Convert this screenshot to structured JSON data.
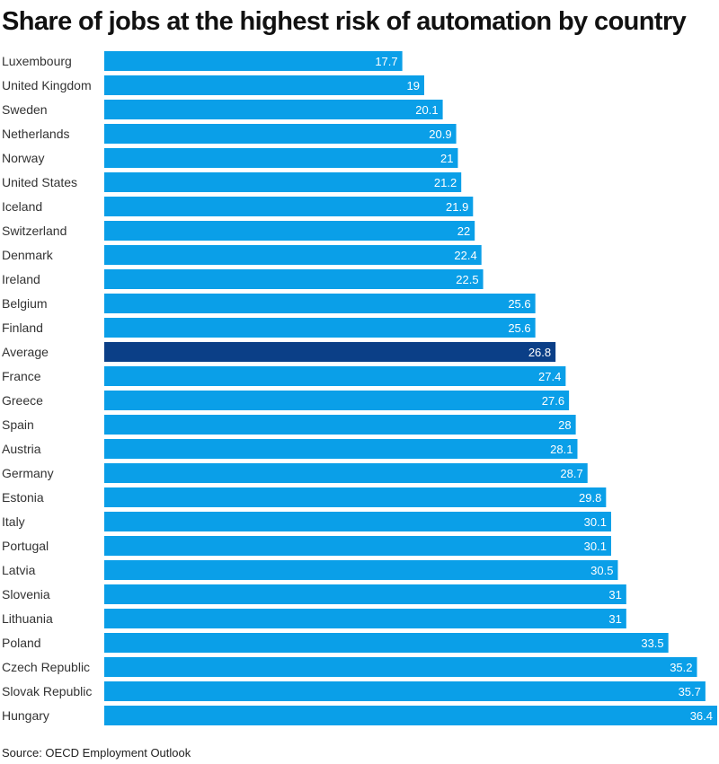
{
  "chart_data": {
    "type": "bar",
    "orientation": "horizontal",
    "title": "Share of jobs at the highest risk of automation by country",
    "source": "Source: OECD Employment Outlook",
    "xlabel": "",
    "ylabel": "",
    "xlim": [
      0,
      36.4
    ],
    "grid": false,
    "colors": {
      "default": "#0a9fe8",
      "highlight": "#0b3f87"
    },
    "highlight": "Average",
    "categories": [
      "Luxembourg",
      "United Kingdom",
      "Sweden",
      "Netherlands",
      "Norway",
      "United States",
      "Iceland",
      "Switzerland",
      "Denmark",
      "Ireland",
      "Belgium",
      "Finland",
      "Average",
      "France",
      "Greece",
      "Spain",
      "Austria",
      "Germany",
      "Estonia",
      "Italy",
      "Portugal",
      "Latvia",
      "Slovenia",
      "Lithuania",
      "Poland",
      "Czech Republic",
      "Slovak Republic",
      "Hungary"
    ],
    "values": [
      17.7,
      19,
      20.1,
      20.9,
      21,
      21.2,
      21.9,
      22,
      22.4,
      22.5,
      25.6,
      25.6,
      26.8,
      27.4,
      27.6,
      28,
      28.1,
      28.7,
      29.8,
      30.1,
      30.1,
      30.5,
      31,
      31,
      33.5,
      35.2,
      35.7,
      36.4
    ]
  }
}
